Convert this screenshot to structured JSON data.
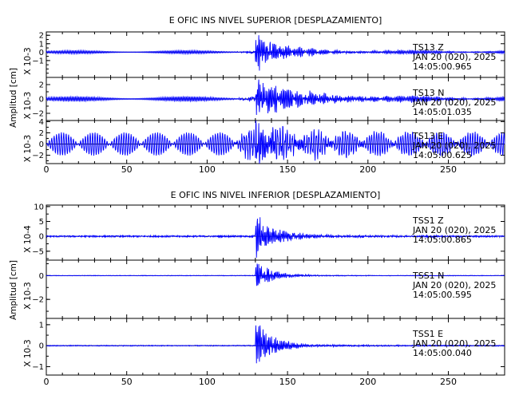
{
  "chart_data": [
    {
      "type": "line",
      "title": "E OFIC INS NIVEL SUPERIOR [DESPLAZAMIENTO]",
      "ylabel": "Amplitud [cm]",
      "xlim": [
        0,
        285
      ],
      "xticks": [
        "0",
        "50",
        "100",
        "150",
        "200",
        "250"
      ],
      "event_time": 130,
      "traces": [
        {
          "station": "TS13",
          "component": "Z",
          "date": "JAN 20 (020), 2025",
          "time": "14:05:00.965",
          "scale_label": "X 10-3",
          "ylim": [
            -3,
            2.4
          ],
          "yticks": [
            -1,
            0,
            1,
            2
          ],
          "ytick_labels": [
            "−1",
            "0",
            "1",
            "2"
          ],
          "noise": 0.2,
          "peak": 2.3,
          "decay": 0.07,
          "coda": 0.25,
          "wave": "period",
          "pre_event_amp": 0.2
        },
        {
          "station": "TS13",
          "component": "N",
          "date": "JAN 20 (020), 2025",
          "time": "14:05:01.035",
          "scale_label": "X 10-3",
          "ylim": [
            -3,
            3
          ],
          "yticks": [
            -2,
            0,
            2
          ],
          "ytick_labels": [
            "−2",
            "0",
            "2"
          ],
          "noise": 0.35,
          "peak": 2.8,
          "decay": 0.045,
          "coda": 0.5,
          "wave": "period",
          "pre_event_amp": 0.35
        },
        {
          "station": "TS13",
          "component": "E",
          "date": "JAN 20 (020), 2025",
          "time": "14:05:00.625",
          "scale_label": "X 10-3",
          "ylim": [
            -3.5,
            4.2
          ],
          "yticks": [
            -2,
            0,
            2,
            4
          ],
          "ytick_labels": [
            "−2",
            "0",
            "2",
            "4"
          ],
          "noise": 2.1,
          "peak": 3.3,
          "decay": 0.06,
          "coda": 1.2,
          "wave": "beating",
          "pre_event_amp": 2.1
        }
      ]
    },
    {
      "type": "line",
      "title": "E OFIC INS NIVEL INFERIOR [DESPLAZAMIENTO]",
      "ylabel": "Amplitud [cm]",
      "xlim": [
        0,
        285
      ],
      "xticks": [
        "0",
        "50",
        "100",
        "150",
        "200",
        "250"
      ],
      "event_time": 130,
      "traces": [
        {
          "station": "TSS1",
          "component": "Z",
          "date": "JAN 20 (020), 2025",
          "time": "14:05:00.865",
          "scale_label": "X 10-4",
          "ylim": [
            -8,
            10.5
          ],
          "yticks": [
            -5,
            0,
            5,
            10
          ],
          "ytick_labels": [
            "−5",
            "0",
            "5",
            "10"
          ],
          "noise": 0.25,
          "peak": 7.5,
          "decay": 0.09,
          "coda": 0.6,
          "wave": "noise",
          "pre_event_amp": 0.25
        },
        {
          "station": "TSS1",
          "component": "N",
          "date": "JAN 20 (020), 2025",
          "time": "14:05:00.595",
          "scale_label": "X 10-3",
          "ylim": [
            -3.6,
            1.3
          ],
          "yticks": [
            -2,
            0
          ],
          "ytick_labels": [
            "−2",
            "0"
          ],
          "noise": 0.02,
          "peak": 1.3,
          "decay": 0.1,
          "coda": 0.05,
          "wave": "noise",
          "pre_event_amp": 0.02
        },
        {
          "station": "TSS1",
          "component": "E",
          "date": "JAN 20 (020), 2025",
          "time": "14:05:00.040",
          "scale_label": "X 10-3",
          "ylim": [
            -1.4,
            1.3
          ],
          "yticks": [
            -1,
            0,
            1
          ],
          "ytick_labels": [
            "−1",
            "0",
            "1"
          ],
          "noise": 0.02,
          "peak": 1.25,
          "decay": 0.1,
          "coda": 0.06,
          "wave": "noise",
          "pre_event_amp": 0.02
        }
      ]
    }
  ]
}
